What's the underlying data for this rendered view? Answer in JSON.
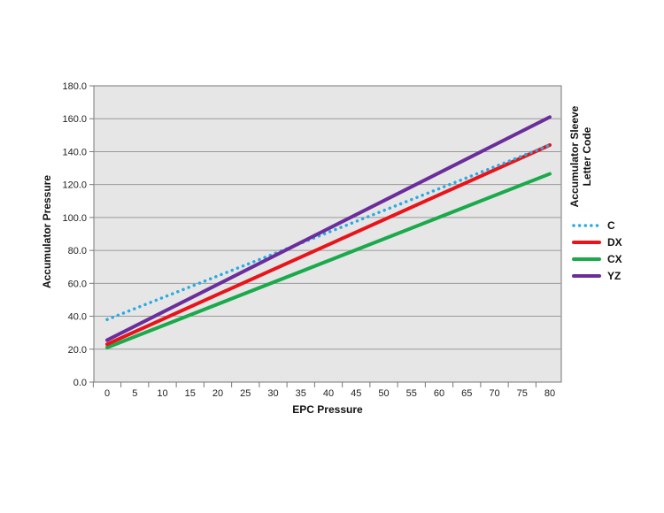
{
  "chart_data": {
    "type": "line",
    "xlabel": "EPC Pressure",
    "ylabel": "Accumulator Pressure",
    "xlim": [
      0,
      80
    ],
    "ylim": [
      0,
      180
    ],
    "x_ticks": [
      "0",
      "5",
      "10",
      "15",
      "20",
      "25",
      "30",
      "35",
      "40",
      "45",
      "50",
      "55",
      "60",
      "65",
      "70",
      "75",
      "80"
    ],
    "y_ticks": [
      "0.0",
      "20.0",
      "40.0",
      "60.0",
      "80.0",
      "100.0",
      "120.0",
      "140.0",
      "160.0",
      "180.0"
    ],
    "grid": "horizontal",
    "legend": {
      "title_line1": "Accumulator Sleeve",
      "title_line2": "Letter Code",
      "placement": "right"
    },
    "x": [
      0,
      80
    ],
    "series": [
      {
        "name": "C",
        "values": [
          38,
          144
        ],
        "color": "#29abe2",
        "style": "dotted"
      },
      {
        "name": "DX",
        "values": [
          23,
          144
        ],
        "color": "#e8141b",
        "style": "solid"
      },
      {
        "name": "CX",
        "values": [
          21,
          126.5
        ],
        "color": "#1aaa4b",
        "style": "solid"
      },
      {
        "name": "YZ",
        "values": [
          25.5,
          161
        ],
        "color": "#6b2d9b",
        "style": "solid"
      }
    ],
    "plot_background": "#e6e6e6"
  }
}
